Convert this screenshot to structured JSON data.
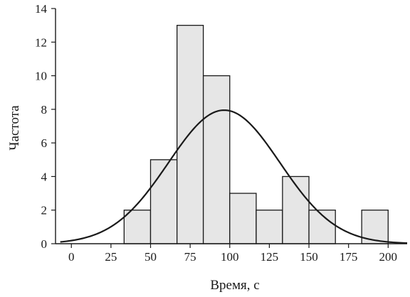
{
  "chart_data": {
    "type": "bar",
    "title": "",
    "xlabel": "Время, с",
    "ylabel": "Частота",
    "xlim": [
      -10,
      212
    ],
    "ylim": [
      0,
      14
    ],
    "xticks": [
      0,
      25,
      50,
      75,
      100,
      125,
      150,
      175,
      200
    ],
    "yticks": [
      0,
      2,
      4,
      6,
      8,
      10,
      12,
      14
    ],
    "grid": false,
    "legend": "none",
    "bins": [
      {
        "start": 33.3,
        "end": 50,
        "count": 2
      },
      {
        "start": 50,
        "end": 66.7,
        "count": 5
      },
      {
        "start": 66.7,
        "end": 83.3,
        "count": 13
      },
      {
        "start": 83.3,
        "end": 100,
        "count": 10
      },
      {
        "start": 100,
        "end": 116.7,
        "count": 3
      },
      {
        "start": 116.7,
        "end": 133.3,
        "count": 2
      },
      {
        "start": 133.3,
        "end": 150,
        "count": 4
      },
      {
        "start": 150,
        "end": 166.7,
        "count": 2
      },
      {
        "start": 166.7,
        "end": 183.3,
        "count": 0
      },
      {
        "start": 183.3,
        "end": 200,
        "count": 2
      }
    ],
    "normal_curve": {
      "mean": 96.5,
      "std": 35.2,
      "peak": 7.95
    },
    "colors": {
      "bar_fill": "#e6e6e6",
      "bar_stroke": "#1a1a1a",
      "curve": "#1a1a1a",
      "axis": "#1a1a1a"
    }
  }
}
